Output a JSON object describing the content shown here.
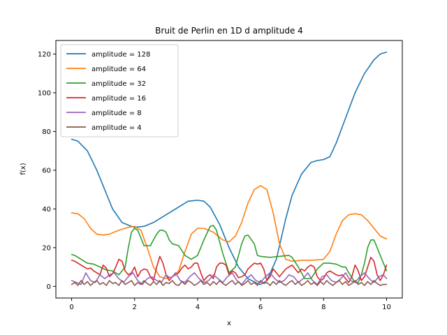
{
  "chart_data": {
    "type": "line",
    "title": "Bruit de Perlin en 1D d amplitude 4",
    "xlabel": "x",
    "ylabel": "f(x)",
    "xlim": [
      -0.5,
      10.5
    ],
    "ylim": [
      -6,
      127
    ],
    "xticks": [
      0,
      2,
      4,
      6,
      8,
      10
    ],
    "yticks": [
      0,
      20,
      40,
      60,
      80,
      100,
      120
    ],
    "grid": false,
    "legend_position": "top-left",
    "series": [
      {
        "name": "amplitude = 128",
        "color": "#1f77b4",
        "x": [
          0,
          0.2,
          0.5,
          0.8,
          1.0,
          1.3,
          1.6,
          1.9,
          2.0,
          2.3,
          2.6,
          3.0,
          3.4,
          3.7,
          4.0,
          4.2,
          4.4,
          4.7,
          5.0,
          5.3,
          5.6,
          5.9,
          6.0,
          6.2,
          6.5,
          6.8,
          7.0,
          7.3,
          7.6,
          7.8,
          8.0,
          8.2,
          8.4,
          8.7,
          9.0,
          9.3,
          9.6,
          9.8,
          10.0
        ],
        "y": [
          76,
          75,
          70,
          60,
          52,
          40,
          33,
          31,
          30.5,
          31,
          33,
          37,
          41,
          44,
          44.5,
          44,
          41,
          32,
          20,
          10,
          4,
          1.5,
          1,
          3,
          14,
          35,
          47,
          58,
          64,
          65,
          65.5,
          67,
          74,
          87,
          100,
          110,
          117,
          120,
          121
        ]
      },
      {
        "name": "amplitude = 64",
        "color": "#ff7f0e",
        "x": [
          0,
          0.2,
          0.4,
          0.6,
          0.8,
          1.0,
          1.2,
          1.5,
          1.8,
          2.0,
          2.2,
          2.4,
          2.6,
          2.8,
          3.0,
          3.2,
          3.4,
          3.6,
          3.8,
          4.0,
          4.2,
          4.5,
          4.8,
          5.0,
          5.2,
          5.4,
          5.6,
          5.8,
          6.0,
          6.2,
          6.4,
          6.6,
          6.8,
          7.0,
          7.3,
          7.6,
          7.9,
          8.0,
          8.2,
          8.4,
          8.6,
          8.8,
          9.0,
          9.2,
          9.4,
          9.6,
          9.8,
          10.0
        ],
        "y": [
          38,
          37.5,
          35,
          30,
          27,
          26.5,
          27,
          29,
          30.5,
          31,
          29,
          20,
          10,
          5,
          4,
          5,
          8,
          18,
          27,
          30,
          30,
          28,
          24,
          23,
          26,
          33,
          43,
          50,
          52,
          50,
          38,
          22,
          14,
          13,
          13.5,
          13.5,
          13.8,
          14,
          18,
          27,
          34,
          37,
          37.5,
          37,
          34,
          30,
          26,
          24.5
        ]
      },
      {
        "name": "amplitude = 32",
        "color": "#2ca02c",
        "x": [
          0,
          0.1,
          0.3,
          0.5,
          0.7,
          0.9,
          1.1,
          1.3,
          1.5,
          1.7,
          1.8,
          1.9,
          2.0,
          2.1,
          2.2,
          2.3,
          2.5,
          2.7,
          2.8,
          2.9,
          3.0,
          3.1,
          3.2,
          3.4,
          3.6,
          3.8,
          4.0,
          4.2,
          4.4,
          4.5,
          4.6,
          4.8,
          5.0,
          5.2,
          5.4,
          5.5,
          5.6,
          5.8,
          5.9,
          6.0,
          6.3,
          6.6,
          6.9,
          7.0,
          7.2,
          7.4,
          7.6,
          7.8,
          8.0,
          8.2,
          8.4,
          8.6,
          8.7,
          8.8,
          9.0,
          9.1,
          9.2,
          9.3,
          9.4,
          9.5,
          9.6,
          9.8,
          10.0
        ],
        "y": [
          16.5,
          16,
          14,
          12,
          11.5,
          10,
          8.5,
          8,
          6,
          10,
          20,
          28,
          30,
          29,
          25,
          21,
          21,
          27,
          29,
          29,
          28,
          24,
          22,
          21,
          16,
          14,
          16,
          24,
          31,
          31.5,
          29,
          17,
          7,
          10,
          22,
          26,
          26.5,
          22,
          16,
          15.5,
          15,
          15.5,
          16,
          15,
          10,
          4,
          4,
          9,
          12,
          12,
          11.5,
          10,
          10,
          7,
          2,
          2,
          6,
          12,
          20,
          24,
          24,
          16,
          8
        ]
      },
      {
        "name": "amplitude = 16",
        "color": "#d62728",
        "x": [
          0,
          0.1,
          0.2,
          0.3,
          0.4,
          0.5,
          0.6,
          0.7,
          0.8,
          0.9,
          1.0,
          1.1,
          1.2,
          1.3,
          1.4,
          1.5,
          1.6,
          1.7,
          1.8,
          1.9,
          2.0,
          2.1,
          2.2,
          2.3,
          2.4,
          2.5,
          2.6,
          2.7,
          2.8,
          2.9,
          3.0,
          3.1,
          3.2,
          3.3,
          3.4,
          3.5,
          3.6,
          3.7,
          3.8,
          3.9,
          4.0,
          4.1,
          4.2,
          4.3,
          4.4,
          4.5,
          4.6,
          4.7,
          4.8,
          4.9,
          5.0,
          5.1,
          5.2,
          5.3,
          5.4,
          5.5,
          5.6,
          5.7,
          5.8,
          5.9,
          6.0,
          6.1,
          6.2,
          6.3,
          6.4,
          6.5,
          6.6,
          6.7,
          6.8,
          6.9,
          7.0,
          7.1,
          7.2,
          7.3,
          7.4,
          7.5,
          7.6,
          7.7,
          7.8,
          7.9,
          8.0,
          8.1,
          8.2,
          8.3,
          8.4,
          8.5,
          8.6,
          8.7,
          8.8,
          8.9,
          9.0,
          9.1,
          9.2,
          9.3,
          9.4,
          9.5,
          9.6,
          9.7,
          9.8,
          9.9,
          10.0
        ],
        "y": [
          13.5,
          13,
          12,
          11,
          10,
          9,
          9.5,
          8,
          7,
          6,
          11,
          9.5,
          5,
          6.5,
          10,
          14,
          13,
          8,
          6,
          7,
          10,
          5,
          8,
          9,
          8.5,
          5,
          3,
          10,
          15.5,
          12,
          6,
          3,
          5,
          6,
          7,
          9.5,
          11,
          9,
          10,
          12,
          12,
          7,
          3,
          5,
          6,
          4,
          10,
          12,
          12,
          11,
          6,
          8,
          7,
          4.5,
          5,
          6,
          9,
          10.5,
          12,
          11.5,
          12,
          9,
          3,
          5,
          9,
          7,
          5,
          7,
          9,
          10,
          11,
          9,
          7,
          9,
          8,
          10,
          11,
          10,
          5,
          3,
          4,
          7,
          8,
          7,
          6,
          5.5,
          6,
          4,
          2,
          5,
          11,
          8,
          3,
          5,
          10,
          15,
          13,
          6,
          3,
          6,
          11
        ]
      },
      {
        "name": "amplitude = 8",
        "color": "#9467bd",
        "x": [
          0,
          0.15,
          0.3,
          0.45,
          0.6,
          0.75,
          0.9,
          1.05,
          1.2,
          1.35,
          1.5,
          1.65,
          1.8,
          1.95,
          2.1,
          2.25,
          2.4,
          2.55,
          2.7,
          2.85,
          3.0,
          3.15,
          3.3,
          3.45,
          3.6,
          3.75,
          3.9,
          4.05,
          4.2,
          4.35,
          4.5,
          4.65,
          4.8,
          4.95,
          5.1,
          5.25,
          5.4,
          5.55,
          5.7,
          5.85,
          6.0,
          6.15,
          6.3,
          6.45,
          6.6,
          6.75,
          6.9,
          7.05,
          7.2,
          7.35,
          7.5,
          7.65,
          7.8,
          7.95,
          8.1,
          8.25,
          8.4,
          8.55,
          8.7,
          8.85,
          9.0,
          9.15,
          9.3,
          9.45,
          9.6,
          9.75,
          9.9,
          10.0
        ],
        "y": [
          3,
          2,
          1,
          7,
          3,
          2,
          6,
          4,
          6,
          7,
          4,
          2,
          5,
          7,
          3,
          1,
          4,
          5,
          3,
          2,
          6,
          4,
          7,
          3,
          2,
          5,
          7,
          4,
          2,
          3,
          6,
          4,
          2,
          5,
          7,
          3,
          1,
          4,
          6,
          3,
          2,
          5,
          7,
          4,
          2,
          3,
          6,
          5,
          2,
          4,
          7,
          3,
          1,
          5,
          6,
          3,
          2,
          4,
          7,
          3,
          2,
          5,
          7,
          4,
          2,
          5,
          6,
          4
        ]
      },
      {
        "name": "amplitude = 4",
        "color": "#8c564b",
        "x": [
          0,
          0.1,
          0.2,
          0.3,
          0.4,
          0.5,
          0.6,
          0.7,
          0.8,
          0.9,
          1.0,
          1.1,
          1.2,
          1.3,
          1.4,
          1.5,
          1.6,
          1.7,
          1.8,
          1.9,
          2.0,
          2.1,
          2.2,
          2.3,
          2.4,
          2.5,
          2.6,
          2.7,
          2.8,
          2.9,
          3.0,
          3.1,
          3.2,
          3.3,
          3.4,
          3.5,
          3.6,
          3.7,
          3.8,
          3.9,
          4.0,
          4.1,
          4.2,
          4.3,
          4.4,
          4.5,
          4.6,
          4.7,
          4.8,
          4.9,
          5.0,
          5.1,
          5.2,
          5.3,
          5.4,
          5.5,
          5.6,
          5.7,
          5.8,
          5.9,
          6.0,
          6.1,
          6.2,
          6.3,
          6.4,
          6.5,
          6.6,
          6.7,
          6.8,
          6.9,
          7.0,
          7.1,
          7.2,
          7.3,
          7.4,
          7.5,
          7.6,
          7.7,
          7.8,
          7.9,
          8.0,
          8.1,
          8.2,
          8.3,
          8.4,
          8.5,
          8.6,
          8.7,
          8.8,
          8.9,
          9.0,
          9.1,
          9.2,
          9.3,
          9.4,
          9.5,
          9.6,
          9.7,
          9.8,
          9.9,
          10.0
        ],
        "y": [
          1,
          2,
          0.5,
          3,
          1,
          2.5,
          0.5,
          2,
          3,
          1,
          2,
          0.5,
          3,
          1.5,
          2,
          0.5,
          3,
          1,
          2,
          3,
          0.5,
          2,
          1,
          3,
          1.5,
          0.5,
          2.5,
          1,
          3,
          0.5,
          2,
          1.5,
          3,
          1,
          0.5,
          2.5,
          1,
          3,
          2,
          0.5,
          1.5,
          3,
          1,
          2,
          0.5,
          2.5,
          1,
          3,
          1.5,
          0.5,
          2,
          3,
          1,
          2.5,
          0.5,
          1.5,
          3,
          1,
          2,
          0.5,
          3,
          1.5,
          2,
          0.5,
          2.5,
          1,
          3,
          1.5,
          0.5,
          2,
          3,
          1,
          2.5,
          0.5,
          1.5,
          3,
          1,
          2,
          0.5,
          2.5,
          1,
          3,
          1.5,
          0.5,
          2,
          3,
          1,
          2.5,
          0.5,
          1.5,
          3,
          1,
          2,
          0.5,
          2.5,
          1,
          3,
          1.5,
          0.5,
          1,
          1
        ]
      }
    ]
  }
}
